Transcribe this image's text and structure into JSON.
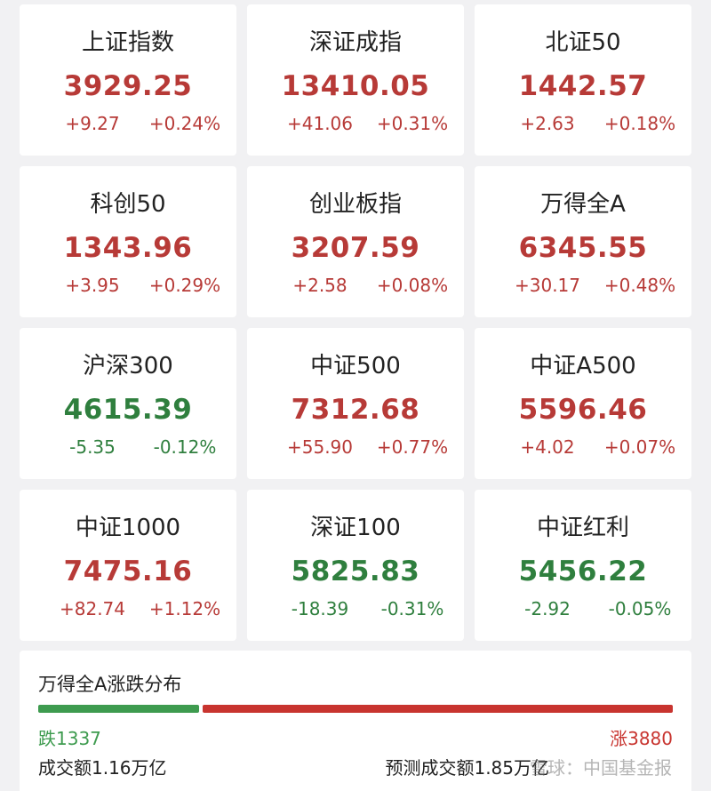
{
  "cards": [
    {
      "name": "上证指数",
      "value": "3929.25",
      "change": "+9.27",
      "pct": "+0.24%",
      "color": "#b73a37"
    },
    {
      "name": "深证成指",
      "value": "13410.05",
      "change": "+41.06",
      "pct": "+0.31%",
      "color": "#b73a37"
    },
    {
      "name": "北证50",
      "value": "1442.57",
      "change": "+2.63",
      "pct": "+0.18%",
      "color": "#b73a37"
    },
    {
      "name": "科创50",
      "value": "1343.96",
      "change": "+3.95",
      "pct": "+0.29%",
      "color": "#b73a37"
    },
    {
      "name": "创业板指",
      "value": "3207.59",
      "change": "+2.58",
      "pct": "+0.08%",
      "color": "#b73a37"
    },
    {
      "name": "万得全A",
      "value": "6345.55",
      "change": "+30.17",
      "pct": "+0.48%",
      "color": "#b73a37"
    },
    {
      "name": "沪深300",
      "value": "4615.39",
      "change": "-5.35",
      "pct": "-0.12%",
      "color": "#2f7f3e"
    },
    {
      "name": "中证500",
      "value": "7312.68",
      "change": "+55.90",
      "pct": "+0.77%",
      "color": "#b73a37"
    },
    {
      "name": "中证A500",
      "value": "5596.46",
      "change": "+4.02",
      "pct": "+0.07%",
      "color": "#b73a37"
    },
    {
      "name": "中证1000",
      "value": "7475.16",
      "change": "+82.74",
      "pct": "+1.12%",
      "color": "#b73a37"
    },
    {
      "name": "深证100",
      "value": "5825.83",
      "change": "-18.39",
      "pct": "-0.31%",
      "color": "#2f7f3e"
    },
    {
      "name": "中证红利",
      "value": "5456.22",
      "change": "-2.92",
      "pct": "-0.05%",
      "color": "#2f7f3e"
    }
  ],
  "distribution": {
    "title": "万得全A涨跌分布",
    "segments": [
      {
        "value": 1337,
        "label": "跌1337",
        "color": "#3e9b4f"
      },
      {
        "value": 3880,
        "label": "涨3880",
        "color": "#c8342f"
      }
    ],
    "turnover": "成交额1.16万亿",
    "forecast": "预测成交额1.85万亿",
    "watermark": "雪球：中国基金报"
  }
}
